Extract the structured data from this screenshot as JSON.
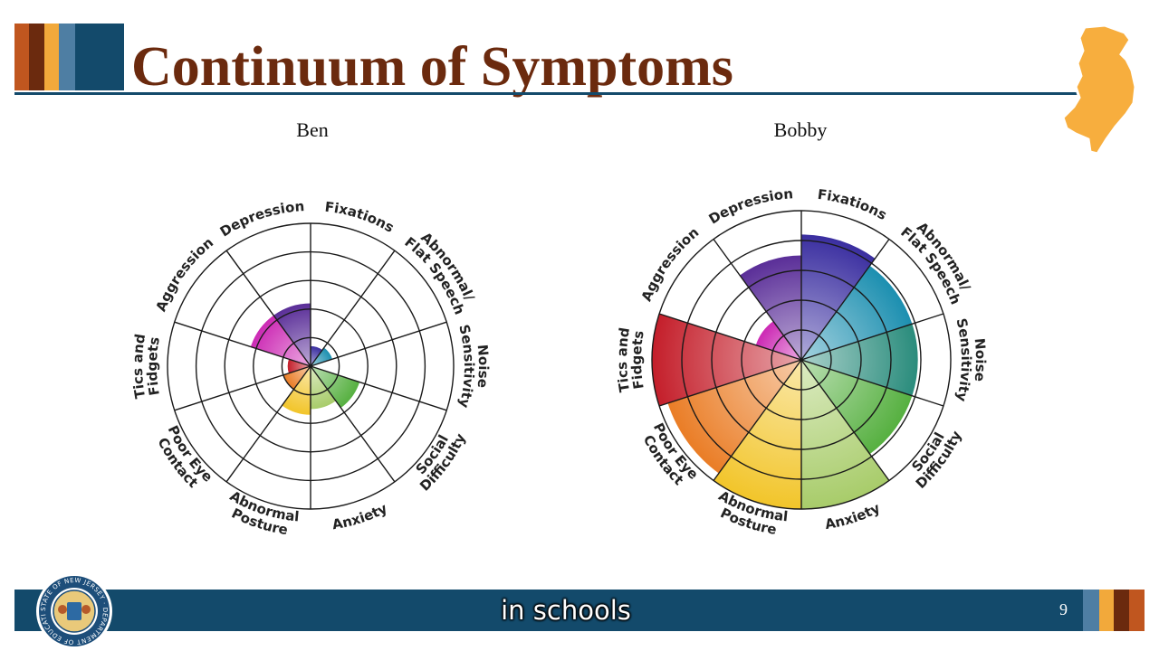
{
  "slide": {
    "title": "Continuum of Symptoms",
    "caption": "in schools",
    "page_number": "9",
    "seal_text": "STATE OF NEW JERSEY · DEPARTMENT OF EDUCATION",
    "colors": {
      "title": "#6b2a0e",
      "rule": "#134a6b",
      "footer": "#134a6b",
      "stripes": [
        "#c0561f",
        "#6b2a0e",
        "#f2a93b",
        "#4e7ea3",
        "#134a6b"
      ],
      "nj_shape": "#f7ae3e"
    }
  },
  "chart_data": [
    {
      "type": "polar-area",
      "title": "Ben",
      "rings": 5,
      "max": 5,
      "categories": [
        "Fixations",
        "Abnormal/\nFlat Speech",
        "Noise\nSensitivity",
        "Social\nDifficulty",
        "Anxiety",
        "Abnormal\nPosture",
        "Poor Eye\nContact",
        "Tics and\nFidgets",
        "Aggression",
        "Depression"
      ],
      "values": [
        0.7,
        0.8,
        0,
        1.8,
        1.5,
        1.7,
        1.0,
        0.8,
        2.2,
        2.2
      ],
      "colors": [
        "#3a2ea0",
        "#1c8fb0",
        "#2a8c7c",
        "#56b040",
        "#a8cc6a",
        "#f2c52a",
        "#ea7d26",
        "#c41e2a",
        "#cc2ab4",
        "#5a2e98"
      ]
    },
    {
      "type": "polar-area",
      "title": "Bobby",
      "rings": 5,
      "max": 5,
      "categories": [
        "Fixations",
        "Abnormal/\nFlat Speech",
        "Noise\nSensitivity",
        "Social\nDifficulty",
        "Anxiety",
        "Abnormal\nPosture",
        "Poor Eye\nContact",
        "Tics and\nFidgets",
        "Aggression",
        "Depression"
      ],
      "values": [
        4.2,
        3.9,
        3.9,
        3.9,
        5.0,
        5.0,
        4.7,
        5.0,
        1.6,
        3.5
      ],
      "colors": [
        "#3a2ea0",
        "#1c8fb0",
        "#2a8c7c",
        "#56b040",
        "#a8cc6a",
        "#f2c52a",
        "#ea7d26",
        "#c41e2a",
        "#cc2ab4",
        "#5a2e98"
      ]
    }
  ]
}
